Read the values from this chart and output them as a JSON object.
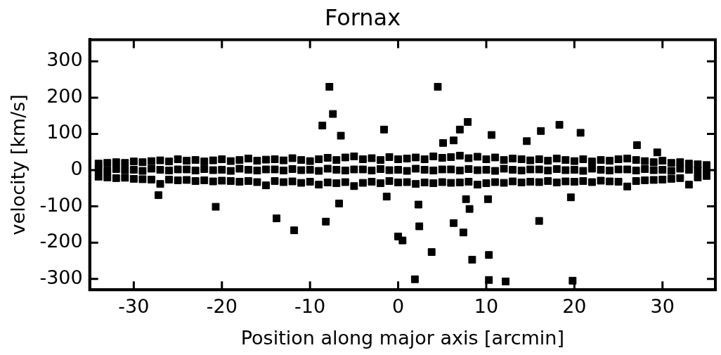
{
  "chart_data": {
    "type": "scatter",
    "title": "Fornax",
    "xlabel": "Position along major axis [arcmin]",
    "ylabel": "velocity [km/s]",
    "xlim": [
      -35,
      36
    ],
    "ylim": [
      -330,
      360
    ],
    "xticks": [
      -30,
      -20,
      -10,
      0,
      10,
      20,
      30
    ],
    "yticks": [
      -300,
      -200,
      -100,
      0,
      100,
      200,
      300
    ],
    "grid": false,
    "legend": false,
    "marker": "square",
    "series": [
      {
        "color": "#000000",
        "x": [
          -34,
          -33,
          -32,
          -31,
          -30,
          -29,
          -28,
          -27,
          -26,
          -25,
          -24,
          -23,
          -22,
          -21,
          -20,
          -19,
          -18,
          -17,
          -16,
          -15,
          -14,
          -13,
          -12,
          -11,
          -10,
          -9,
          -8,
          -7,
          -6,
          -5,
          -4,
          -3,
          -2,
          -1,
          0,
          1,
          2,
          3,
          4,
          5,
          6,
          7,
          8,
          9,
          10,
          11,
          12,
          13,
          14,
          15,
          16,
          17,
          18,
          19,
          20,
          21,
          22,
          23,
          24,
          25,
          26,
          27,
          28,
          29,
          30,
          31,
          32,
          33,
          34,
          35,
          -34,
          -33,
          -32,
          -31,
          -30,
          -29,
          -28,
          -27,
          -26,
          -25,
          -24,
          -23,
          -22,
          -21,
          -20,
          -19,
          -18,
          -17,
          -16,
          -15,
          -14,
          -13,
          -12,
          -11,
          -10,
          -9,
          -8,
          -7,
          -6,
          -5,
          -4,
          -3,
          -2,
          -1,
          0,
          1,
          2,
          3,
          4,
          5,
          6,
          7,
          8,
          9,
          10,
          11,
          12,
          13,
          14,
          15,
          16,
          17,
          18,
          19,
          20,
          21,
          22,
          23,
          24,
          25,
          26,
          27,
          28,
          29,
          30,
          31,
          32,
          33,
          34,
          35,
          -34,
          -33,
          -32,
          -31,
          -30,
          -29,
          -28,
          -27,
          -26,
          -25,
          -24,
          -23,
          -22,
          -21,
          -20,
          -19,
          -18,
          -17,
          -16,
          -15,
          -14,
          -13,
          -12,
          -11,
          -10,
          -9,
          -8,
          -7,
          -6,
          -5,
          -4,
          -3,
          -2,
          -1,
          0,
          1,
          2,
          3,
          4,
          5,
          6,
          7,
          8,
          9,
          10,
          11,
          12,
          13,
          14,
          15,
          16,
          17,
          18,
          19,
          20,
          21,
          22,
          23,
          24,
          25,
          26,
          27,
          28,
          29,
          30,
          31,
          32,
          33,
          34,
          35
        ],
        "values": [
          18,
          20,
          22,
          20,
          24,
          22,
          25,
          27,
          24,
          30,
          26,
          28,
          24,
          27,
          30,
          25,
          28,
          32,
          26,
          29,
          30,
          27,
          33,
          28,
          25,
          30,
          34,
          28,
          35,
          38,
          30,
          33,
          28,
          36,
          30,
          32,
          35,
          30,
          38,
          34,
          36,
          40,
          33,
          37,
          30,
          35,
          28,
          32,
          30,
          27,
          30,
          26,
          32,
          28,
          25,
          30,
          24,
          28,
          26,
          30,
          32,
          28,
          25,
          22,
          26,
          20,
          22,
          18,
          16,
          14,
          2,
          -1,
          3,
          0,
          1,
          -2,
          4,
          1,
          -1,
          2,
          2,
          -1,
          3,
          0,
          1,
          -2,
          4,
          1,
          -1,
          2,
          2,
          -1,
          3,
          0,
          1,
          -2,
          4,
          1,
          -1,
          2,
          2,
          -1,
          3,
          0,
          1,
          -2,
          4,
          1,
          -1,
          2,
          2,
          -1,
          3,
          0,
          1,
          -2,
          4,
          1,
          -1,
          2,
          2,
          -1,
          3,
          0,
          1,
          -2,
          4,
          1,
          -1,
          2,
          2,
          -1,
          3,
          0,
          1,
          -2,
          4,
          1,
          -1,
          2,
          -18,
          -20,
          -22,
          -21,
          -24,
          -25,
          -26,
          -38,
          -26,
          -28,
          -27,
          -30,
          -28,
          -31,
          -29,
          -30,
          -32,
          -30,
          -33,
          -42,
          -30,
          -33,
          -31,
          -35,
          -32,
          -40,
          -34,
          -36,
          -33,
          -44,
          -35,
          -32,
          -36,
          -30,
          -34,
          -33,
          -38,
          -34,
          -36,
          -33,
          -35,
          -34,
          -32,
          -40,
          -36,
          -33,
          -35,
          -31,
          -34,
          -32,
          -33,
          -30,
          -34,
          -31,
          -32,
          -30,
          -33,
          -29,
          -31,
          -32,
          -45,
          -30,
          -28,
          -27,
          -26,
          -24,
          -22,
          -40,
          -20,
          -16
        ]
      },
      {
        "color": "#000000",
        "x": [
          -7.8,
          -7.4,
          -8.6,
          -6.5,
          -1.6,
          -27.2,
          -20.7,
          -13.8,
          -11.8,
          -8.2,
          -6.7,
          -1.3,
          0.0,
          0.5,
          4.5,
          7.9,
          7.0,
          6.3,
          5.1,
          10.6,
          14.6,
          16.2,
          18.3,
          20.7,
          27.1,
          29.4,
          2.3,
          2.4,
          3.8,
          1.9,
          7.7,
          8.1,
          10.2,
          6.3,
          7.4,
          8.4,
          10.3,
          10.3,
          12.2,
          16.0,
          19.6,
          19.8
        ],
        "values": [
          230,
          155,
          123,
          95,
          112,
          -69,
          -101,
          -133,
          -166,
          -142,
          -92,
          -73,
          -183,
          -194,
          230,
          133,
          112,
          82,
          75,
          97,
          80,
          108,
          125,
          103,
          69,
          49,
          -95,
          -155,
          -226,
          -301,
          -80,
          -107,
          -80,
          -146,
          -172,
          -247,
          -234,
          -303,
          -307,
          -140,
          -75,
          -305
        ]
      }
    ]
  }
}
